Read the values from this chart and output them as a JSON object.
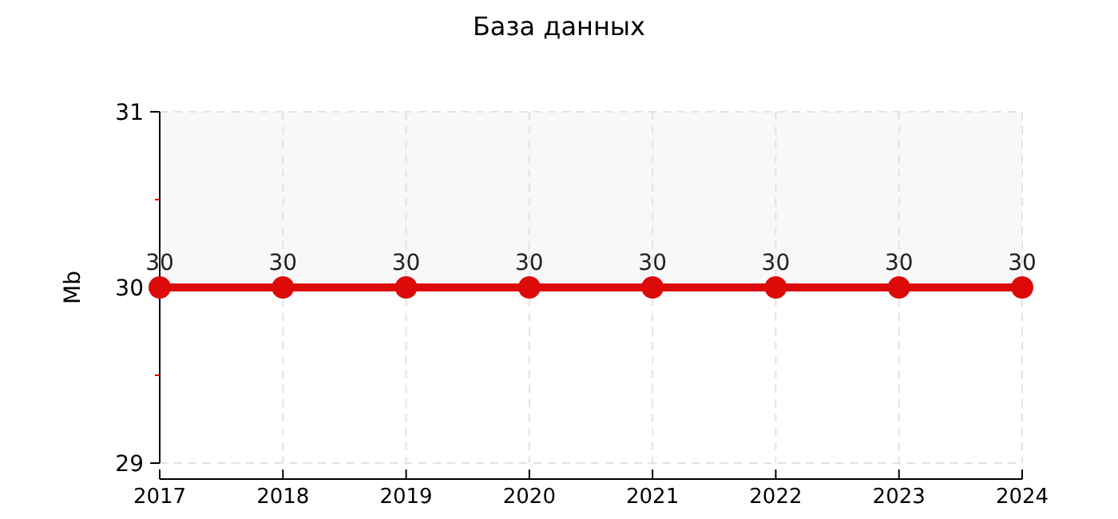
{
  "chart_data": {
    "type": "line",
    "title": "База данных",
    "ylabel": "Mb",
    "categories": [
      "2017",
      "2018",
      "2019",
      "2020",
      "2021",
      "2022",
      "2023",
      "2024"
    ],
    "series": [
      {
        "color": "#dd0a0a",
        "values": [
          30,
          30,
          30,
          30,
          30,
          30,
          30,
          30
        ]
      }
    ],
    "ylim": [
      29,
      31
    ],
    "yticks": [
      29,
      {
        "value": 29.5,
        "label": null
      },
      30,
      {
        "value": 30.5,
        "label": null
      },
      31
    ],
    "bands": [
      {
        "axis": "y",
        "from": 30,
        "to": 31,
        "color": "#f8f8f8"
      }
    ],
    "grid": true,
    "marker": "circle",
    "line_style": "solid",
    "data_labels": true
  }
}
